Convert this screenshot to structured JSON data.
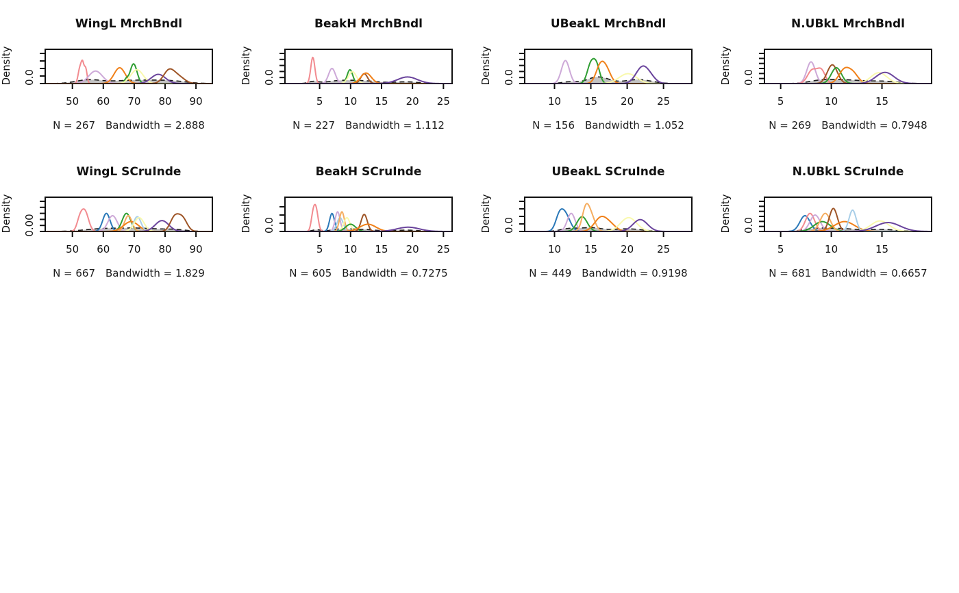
{
  "page": {
    "background": "#ffffff"
  },
  "palette": {
    "salmon": "#f28b90",
    "thistle": "#cda9d8",
    "steelblue": "#2a78b8",
    "green": "#2f9e33",
    "darkorange": "#f08019",
    "sandybrown": "#f5ad60",
    "paleyellow": "#f9f9ad",
    "lightblue": "#a8cee8",
    "purple": "#6a449c",
    "sienna": "#9e5527",
    "overall_fill": "#bdbdbd",
    "dash": "#1c1c1c",
    "axis": "#111111"
  },
  "chart_data": [
    {
      "type": "line",
      "subtype": "kernel-density-overlay",
      "title": "WingL MrchBndl",
      "ylabel": "Density",
      "ytick": "0.0",
      "stats_n": "N = 267",
      "stats_bw": "Bandwidth = 2.888",
      "n_yticks": 5,
      "xlim": [
        41.2,
        95.3
      ],
      "xticks": [
        50,
        60,
        70,
        80,
        90
      ],
      "overall": {
        "comps": [
          [
            55,
            4,
            0.1
          ],
          [
            70,
            8,
            0.1
          ],
          [
            82,
            5,
            0.06
          ]
        ]
      },
      "series": [
        {
          "name": "salmon",
          "comps": [
            [
              52.4,
              0.55,
              0.45
            ],
            [
              53.3,
              0.45,
              0.55
            ],
            [
              54.3,
              0.45,
              0.45
            ]
          ]
        },
        {
          "name": "thistle",
          "comps": [
            [
              57.5,
              2.2,
              0.38
            ]
          ]
        },
        {
          "name": "darkorange",
          "comps": [
            [
              65.3,
              1.8,
              0.48
            ]
          ]
        },
        {
          "name": "green",
          "comps": [
            [
              69.8,
              1.1,
              0.6
            ],
            [
              67.4,
              0.6,
              0.12
            ]
          ]
        },
        {
          "name": "paleyellow",
          "comps": [
            [
              70.9,
              2.0,
              0.42
            ]
          ]
        },
        {
          "name": "purple",
          "comps": [
            [
              77.8,
              2.3,
              0.28
            ]
          ]
        },
        {
          "name": "sienna",
          "comps": [
            [
              81.3,
              1.8,
              0.4
            ],
            [
              84.6,
              1.9,
              0.18
            ]
          ]
        }
      ]
    },
    {
      "type": "line",
      "subtype": "kernel-density-overlay",
      "title": "BeakH MrchBndl",
      "ylabel": "Density",
      "ytick": "0.0",
      "stats_n": "N = 227",
      "stats_bw": "Bandwidth = 1.112",
      "n_yticks": 6,
      "xlim": [
        -0.6,
        26.4
      ],
      "xticks": [
        5,
        10,
        15,
        20,
        25
      ],
      "overall": {
        "comps": [
          [
            4,
            0.8,
            0.06
          ],
          [
            8,
            2,
            0.07
          ],
          [
            12,
            2.5,
            0.08
          ],
          [
            19,
            2,
            0.05
          ]
        ]
      },
      "series": [
        {
          "name": "salmon",
          "comps": [
            [
              3.9,
              0.33,
              0.8
            ]
          ]
        },
        {
          "name": "thistle",
          "comps": [
            [
              7.0,
              0.55,
              0.46
            ]
          ]
        },
        {
          "name": "green",
          "comps": [
            [
              9.9,
              0.45,
              0.42
            ]
          ]
        },
        {
          "name": "paleyellow",
          "comps": [
            [
              10.3,
              0.65,
              0.36
            ]
          ]
        },
        {
          "name": "sienna",
          "comps": [
            [
              12.2,
              0.55,
              0.3
            ]
          ]
        },
        {
          "name": "darkorange",
          "comps": [
            [
              12.5,
              0.85,
              0.32
            ]
          ]
        },
        {
          "name": "purple",
          "comps": [
            [
              19.2,
              1.6,
              0.2
            ]
          ]
        }
      ]
    },
    {
      "type": "line",
      "subtype": "kernel-density-overlay",
      "title": "UBeakL MrchBndl",
      "ylabel": "Density",
      "ytick": "0.0",
      "stats_n": "N = 156",
      "stats_bw": "Bandwidth = 1.052",
      "n_yticks": 6,
      "xlim": [
        5.9,
        28.9
      ],
      "xticks": [
        10,
        15,
        20,
        25
      ],
      "overall": {
        "comps": [
          [
            16,
            1.5,
            0.2
          ],
          [
            21.5,
            1.8,
            0.12
          ],
          [
            12,
            1,
            0.05
          ]
        ]
      },
      "series": [
        {
          "name": "thistle",
          "comps": [
            [
              11.5,
              0.55,
              0.7
            ]
          ]
        },
        {
          "name": "green",
          "comps": [
            [
              15.0,
              0.5,
              0.58
            ],
            [
              15.8,
              0.45,
              0.5
            ]
          ]
        },
        {
          "name": "darkorange",
          "comps": [
            [
              16.3,
              0.6,
              0.52
            ],
            [
              17.2,
              0.6,
              0.36
            ]
          ]
        },
        {
          "name": "paleyellow",
          "comps": [
            [
              20.1,
              1.2,
              0.3
            ]
          ]
        },
        {
          "name": "purple",
          "comps": [
            [
              22.0,
              0.85,
              0.45
            ],
            [
              23.1,
              0.8,
              0.18
            ]
          ]
        }
      ]
    },
    {
      "type": "line",
      "subtype": "kernel-density-overlay",
      "title": "N.UBkL MrchBndl",
      "ylabel": "Density",
      "ytick": "0.0",
      "stats_n": "N = 269",
      "stats_bw": "Bandwidth = 0.7948",
      "n_yticks": 7,
      "xlim": [
        3.4,
        19.9
      ],
      "xticks": [
        5,
        10,
        15
      ],
      "overall": {
        "comps": [
          [
            9,
            1.2,
            0.09
          ],
          [
            11.5,
            1.5,
            0.1
          ],
          [
            15,
            1.5,
            0.07
          ]
        ]
      },
      "series": [
        {
          "name": "thistle",
          "comps": [
            [
              8.0,
              0.42,
              0.66
            ]
          ]
        },
        {
          "name": "salmon",
          "comps": [
            [
              8.1,
              0.45,
              0.4
            ],
            [
              9.0,
              0.4,
              0.4
            ]
          ]
        },
        {
          "name": "sienna",
          "comps": [
            [
              10.1,
              0.5,
              0.57
            ]
          ]
        },
        {
          "name": "green",
          "comps": [
            [
              10.5,
              0.5,
              0.48
            ]
          ]
        },
        {
          "name": "darkorange",
          "comps": [
            [
              11.3,
              0.55,
              0.42
            ],
            [
              12.2,
              0.5,
              0.26
            ]
          ]
        },
        {
          "name": "paleyellow",
          "comps": [
            [
              14.7,
              0.8,
              0.33
            ]
          ]
        },
        {
          "name": "purple",
          "comps": [
            [
              15.3,
              0.9,
              0.34
            ]
          ]
        }
      ]
    },
    {
      "type": "line",
      "subtype": "kernel-density-overlay",
      "title": "WingL SCruInde",
      "ylabel": "Density",
      "ytick": "0.00",
      "stats_n": "N = 667",
      "stats_bw": "Bandwidth = 1.829",
      "n_yticks": 6,
      "xlim": [
        41.2,
        95.3
      ],
      "xticks": [
        50,
        60,
        70,
        80,
        90
      ],
      "overall": {
        "comps": [
          [
            60,
            6,
            0.08
          ],
          [
            72,
            6,
            0.09
          ],
          [
            83,
            4,
            0.05
          ]
        ]
      },
      "series": [
        {
          "name": "salmon",
          "comps": [
            [
              54.0,
              1.2,
              0.62
            ],
            [
              52.3,
              0.9,
              0.28
            ]
          ]
        },
        {
          "name": "steelblue",
          "comps": [
            [
              61.0,
              1.2,
              0.55
            ]
          ]
        },
        {
          "name": "thistle",
          "comps": [
            [
              63.0,
              1.5,
              0.48
            ]
          ]
        },
        {
          "name": "green",
          "comps": [
            [
              67.5,
              1.4,
              0.55
            ]
          ]
        },
        {
          "name": "sandybrown",
          "comps": [
            [
              68.1,
              1.2,
              0.48
            ]
          ]
        },
        {
          "name": "darkorange",
          "comps": [
            [
              69.0,
              2.4,
              0.3
            ]
          ]
        },
        {
          "name": "lightblue",
          "comps": [
            [
              71.0,
              1.2,
              0.45
            ]
          ]
        },
        {
          "name": "paleyellow",
          "comps": [
            [
              71.6,
              1.6,
              0.42
            ]
          ]
        },
        {
          "name": "purple",
          "comps": [
            [
              79.0,
              2.2,
              0.33
            ]
          ]
        },
        {
          "name": "sienna",
          "comps": [
            [
              83.0,
              1.4,
              0.4
            ],
            [
              85.6,
              1.5,
              0.4
            ]
          ]
        }
      ]
    },
    {
      "type": "line",
      "subtype": "kernel-density-overlay",
      "title": "BeakH SCruInde",
      "ylabel": "Density",
      "ytick": "0.0",
      "stats_n": "N = 605",
      "stats_bw": "Bandwidth = 0.7275",
      "n_yticks": 4,
      "xlim": [
        -0.6,
        26.4
      ],
      "xticks": [
        5,
        10,
        15,
        20,
        25
      ],
      "overall": {
        "comps": [
          [
            4.5,
            0.7,
            0.05
          ],
          [
            8.5,
            1.5,
            0.07
          ],
          [
            12,
            2,
            0.06
          ],
          [
            19,
            2,
            0.04
          ]
        ]
      },
      "series": [
        {
          "name": "salmon",
          "comps": [
            [
              4.4,
              0.35,
              0.68
            ],
            [
              3.9,
              0.3,
              0.4
            ]
          ]
        },
        {
          "name": "steelblue",
          "comps": [
            [
              7.0,
              0.4,
              0.55
            ]
          ]
        },
        {
          "name": "thistle",
          "comps": [
            [
              7.9,
              0.4,
              0.6
            ]
          ]
        },
        {
          "name": "lightblue",
          "comps": [
            [
              8.3,
              0.5,
              0.42
            ]
          ]
        },
        {
          "name": "sandybrown",
          "comps": [
            [
              8.6,
              0.4,
              0.6
            ]
          ]
        },
        {
          "name": "paleyellow",
          "comps": [
            [
              9.4,
              0.5,
              0.42
            ]
          ]
        },
        {
          "name": "green",
          "comps": [
            [
              10.0,
              0.8,
              0.22
            ]
          ]
        },
        {
          "name": "sienna",
          "comps": [
            [
              12.2,
              0.5,
              0.52
            ]
          ]
        },
        {
          "name": "darkorange",
          "comps": [
            [
              12.8,
              1.3,
              0.22
            ]
          ]
        },
        {
          "name": "purple",
          "comps": [
            [
              19.3,
              1.8,
              0.13
            ]
          ]
        }
      ]
    },
    {
      "type": "line",
      "subtype": "kernel-density-overlay",
      "title": "UBeakL SCruInde",
      "ylabel": "Density",
      "ytick": "0.0",
      "stats_n": "N = 449",
      "stats_bw": "Bandwidth = 0.9198",
      "n_yticks": 5,
      "xlim": [
        5.9,
        28.9
      ],
      "xticks": [
        10,
        15,
        20,
        25
      ],
      "overall": {
        "comps": [
          [
            12,
            1.2,
            0.08
          ],
          [
            15,
            1.5,
            0.11
          ],
          [
            20,
            2,
            0.08
          ]
        ]
      },
      "series": [
        {
          "name": "steelblue",
          "comps": [
            [
              11.4,
              0.7,
              0.55
            ],
            [
              10.6,
              0.5,
              0.3
            ]
          ]
        },
        {
          "name": "thistle",
          "comps": [
            [
              12.3,
              0.55,
              0.55
            ]
          ]
        },
        {
          "name": "green",
          "comps": [
            [
              13.8,
              0.7,
              0.45
            ]
          ]
        },
        {
          "name": "sandybrown",
          "comps": [
            [
              14.3,
              0.5,
              0.68
            ],
            [
              15.1,
              0.55,
              0.4
            ]
          ]
        },
        {
          "name": "darkorange",
          "comps": [
            [
              16.4,
              0.9,
              0.42
            ],
            [
              17.8,
              0.8,
              0.15
            ]
          ]
        },
        {
          "name": "paleyellow",
          "comps": [
            [
              20.2,
              1.1,
              0.42
            ]
          ]
        },
        {
          "name": "purple",
          "comps": [
            [
              21.8,
              1.0,
              0.36
            ]
          ]
        }
      ]
    },
    {
      "type": "line",
      "subtype": "kernel-density-overlay",
      "title": "N.UBkL SCruInde",
      "ylabel": "Density",
      "ytick": "0.0",
      "stats_n": "N = 681",
      "stats_bw": "Bandwidth = 0.6657",
      "n_yticks": 7,
      "xlim": [
        3.4,
        19.9
      ],
      "xticks": [
        5,
        10,
        15
      ],
      "overall": {
        "comps": [
          [
            8.5,
            1.2,
            0.08
          ],
          [
            11,
            1.5,
            0.08
          ],
          [
            15,
            1.5,
            0.06
          ]
        ]
      },
      "series": [
        {
          "name": "steelblue",
          "comps": [
            [
              7.4,
              0.5,
              0.48
            ]
          ]
        },
        {
          "name": "salmon",
          "comps": [
            [
              7.9,
              0.45,
              0.55
            ]
          ]
        },
        {
          "name": "thistle",
          "comps": [
            [
              8.4,
              0.5,
              0.5
            ]
          ]
        },
        {
          "name": "green",
          "comps": [
            [
              9.1,
              0.8,
              0.3
            ]
          ]
        },
        {
          "name": "sandybrown",
          "comps": [
            [
              9.4,
              0.5,
              0.55
            ]
          ]
        },
        {
          "name": "sienna",
          "comps": [
            [
              10.2,
              0.4,
              0.7
            ]
          ]
        },
        {
          "name": "darkorange",
          "comps": [
            [
              11.3,
              1.0,
              0.3
            ]
          ]
        },
        {
          "name": "lightblue",
          "comps": [
            [
              12.1,
              0.35,
              0.65
            ]
          ]
        },
        {
          "name": "paleyellow",
          "comps": [
            [
              14.8,
              0.9,
              0.32
            ]
          ]
        },
        {
          "name": "purple",
          "comps": [
            [
              15.6,
              1.2,
              0.27
            ]
          ]
        }
      ]
    }
  ]
}
